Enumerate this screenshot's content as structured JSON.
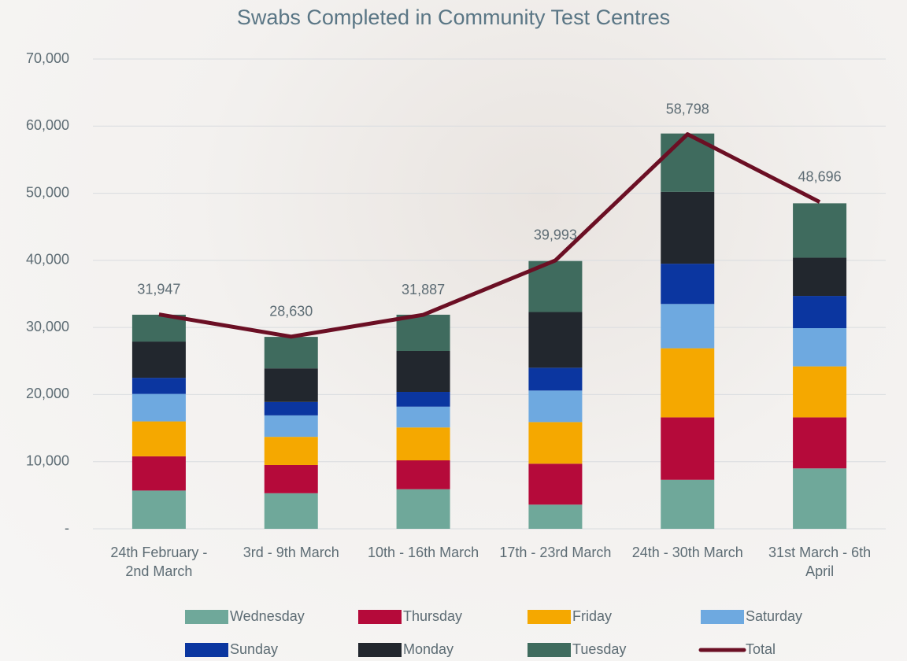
{
  "chart_data": {
    "type": "bar",
    "title": "Swabs Completed in Community Test Centres",
    "categories": [
      "24th February - 2nd March",
      "3rd - 9th March",
      "10th - 16th March",
      "17th - 23rd March",
      "24th - 30th March",
      "31st March - 6th April"
    ],
    "series": [
      {
        "name": "Wednesday",
        "color": "#6fa89a",
        "values": [
          5700,
          5300,
          5900,
          3600,
          7300,
          9000
        ]
      },
      {
        "name": "Thursday",
        "color": "#b50a3a",
        "values": [
          5100,
          4200,
          4300,
          6100,
          9300,
          7600
        ]
      },
      {
        "name": "Friday",
        "color": "#f5a800",
        "values": [
          5200,
          4200,
          4900,
          6200,
          10300,
          7600
        ]
      },
      {
        "name": "Saturday",
        "color": "#6ea9e0",
        "values": [
          4100,
          3200,
          3100,
          4700,
          6600,
          5700
        ]
      },
      {
        "name": "Sunday",
        "color": "#0b36a0",
        "values": [
          2400,
          2000,
          2200,
          3400,
          6000,
          4800
        ]
      },
      {
        "name": "Monday",
        "color": "#22272e",
        "values": [
          5400,
          5000,
          6100,
          8300,
          10700,
          5700
        ]
      },
      {
        "name": "Tuesday",
        "color": "#3f6b5e",
        "values": [
          4000,
          4700,
          5400,
          7600,
          8700,
          8100
        ]
      },
      {
        "name": "Total",
        "type": "line",
        "color": "#6b0f24",
        "values": [
          31947,
          28630,
          31887,
          39993,
          58798,
          48696
        ],
        "value_labels": [
          "31,947",
          "28,630",
          "31,887",
          "39,993",
          "58,798",
          "48,696"
        ]
      }
    ],
    "ylim": [
      0,
      70000
    ],
    "yticks": [
      {
        "value": 0,
        "label": "-"
      },
      {
        "value": 10000,
        "label": "10,000"
      },
      {
        "value": 20000,
        "label": "20,000"
      },
      {
        "value": 30000,
        "label": "30,000"
      },
      {
        "value": 40000,
        "label": "40,000"
      },
      {
        "value": 50000,
        "label": "50,000"
      },
      {
        "value": 60000,
        "label": "60,000"
      },
      {
        "value": 70000,
        "label": "70,000"
      }
    ],
    "grid": true,
    "legend": "bottom"
  }
}
